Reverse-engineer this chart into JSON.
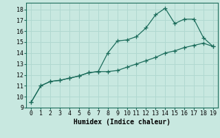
{
  "title": "",
  "xlabel": "Humidex (Indice chaleur)",
  "ylabel": "",
  "bg_color": "#c8e8e0",
  "grid_color": "#b0d8d0",
  "line_color": "#1a6b5a",
  "xlim": [
    -0.5,
    19.5
  ],
  "ylim": [
    9,
    18.6
  ],
  "x_ticks": [
    0,
    1,
    2,
    3,
    4,
    5,
    6,
    7,
    8,
    9,
    10,
    11,
    12,
    13,
    14,
    15,
    16,
    17,
    18,
    19
  ],
  "y_ticks": [
    9,
    10,
    11,
    12,
    13,
    14,
    15,
    16,
    17,
    18
  ],
  "line1_x": [
    0,
    1,
    2,
    3,
    4,
    5,
    6,
    7,
    8,
    9,
    10,
    11,
    12,
    13,
    14,
    15,
    16,
    17,
    18,
    19
  ],
  "line1_y": [
    9.5,
    11.0,
    11.4,
    11.5,
    11.7,
    11.9,
    12.2,
    12.3,
    14.0,
    15.1,
    15.2,
    15.5,
    16.3,
    17.5,
    18.1,
    16.7,
    17.1,
    17.1,
    15.4,
    14.6
  ],
  "line2_x": [
    0,
    1,
    2,
    3,
    4,
    5,
    6,
    7,
    8,
    9,
    10,
    11,
    12,
    13,
    14,
    15,
    16,
    17,
    18,
    19
  ],
  "line2_y": [
    9.5,
    11.0,
    11.4,
    11.5,
    11.7,
    11.9,
    12.2,
    12.3,
    12.3,
    12.4,
    12.7,
    13.0,
    13.3,
    13.6,
    14.0,
    14.2,
    14.5,
    14.7,
    14.9,
    14.6
  ],
  "marker_size": 4,
  "font_size_tick": 6,
  "font_size_xlabel": 7
}
